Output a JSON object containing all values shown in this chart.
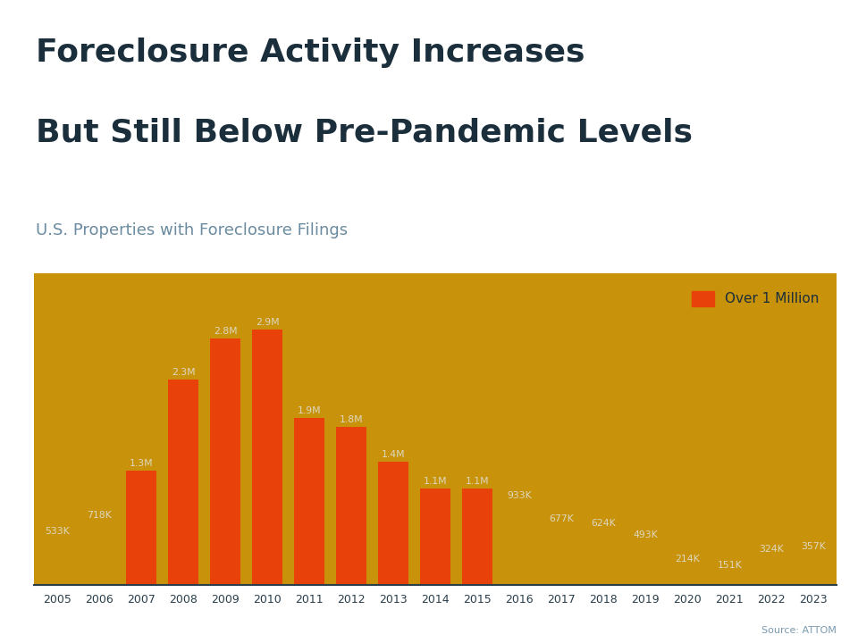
{
  "title_line1": "Foreclosure Activity Increases",
  "title_line2": "But Still Below Pre-Pandemic Levels",
  "subtitle": "U.S. Properties with Foreclosure Filings",
  "source": "Source: ATTOM",
  "years": [
    2005,
    2006,
    2007,
    2008,
    2009,
    2010,
    2011,
    2012,
    2013,
    2014,
    2015,
    2016,
    2017,
    2018,
    2019,
    2020,
    2021,
    2022,
    2023
  ],
  "values": [
    533000,
    718000,
    1300000,
    2330000,
    2800000,
    2900000,
    1900000,
    1800000,
    1400000,
    1100000,
    1100000,
    933000,
    677000,
    624000,
    493000,
    214000,
    151000,
    324000,
    357000
  ],
  "labels": [
    "533K",
    "718K",
    "1.3M",
    "2.3M",
    "2.8M",
    "2.9M",
    "1.9M",
    "1.8M",
    "1.4M",
    "1.1M",
    "1.1M",
    "933K",
    "677K",
    "624K",
    "493K",
    "214K",
    "151K",
    "324K",
    "357K"
  ],
  "over_million_threshold": 1000000,
  "bar_color_over": "#e8420a",
  "bar_color_under": "#c8920a",
  "chart_bg_color": "#c8920a",
  "title_color": "#1a2e3b",
  "subtitle_color": "#6a8ba0",
  "label_color": "#ddd8c0",
  "source_color": "#7a9ab0",
  "top_stripe_color": "#1a6040",
  "legend_box_color": "#e8420a",
  "legend_text_color": "#1a2e3b",
  "axis_color": "#2a3e4b",
  "xticklabel_color": "#2a3e4b"
}
